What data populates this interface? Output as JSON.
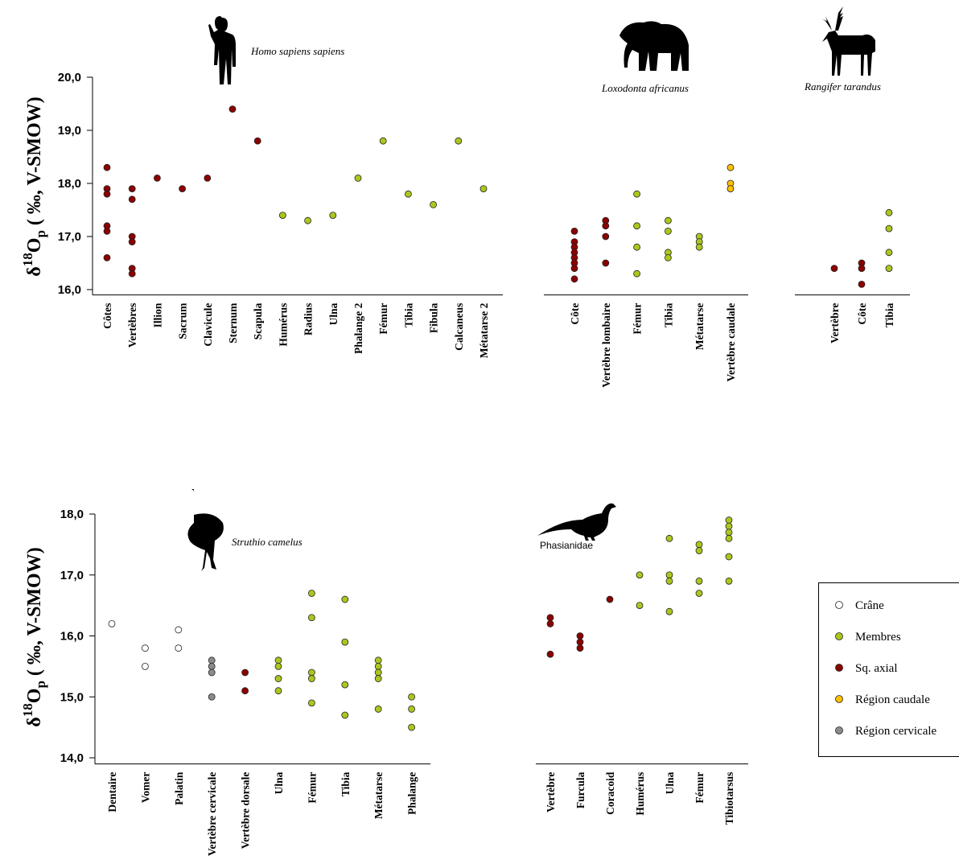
{
  "chart_data": [
    {
      "type": "scatter",
      "title": "Homo sapiens sapiens",
      "ylabel": {
        "symbol": "δ",
        "superscript": "18",
        "main": "O",
        "subscript": "p",
        "rest": " ( ‰, V-SMOW)"
      },
      "categories": [
        "Côtes",
        "Vertèbres",
        "Illion",
        "Sacrum",
        "Clavicule",
        "Sternum",
        "Scapula",
        "Humérus",
        "Radius",
        "Ulna",
        "Phalange 2",
        "Fémur",
        "Tibia",
        "Fibula",
        "Calcaneus",
        "Métatarse 2"
      ],
      "ylim": [
        15.9,
        20.0
      ],
      "yticks": [
        {
          "value": 16,
          "label": "16,0"
        },
        {
          "value": 17,
          "label": "17,0"
        },
        {
          "value": 18,
          "label": "18,0"
        },
        {
          "value": 19,
          "label": "19,0"
        },
        {
          "value": 20,
          "label": "20,0"
        }
      ],
      "series": [
        {
          "name": "Sq. axial",
          "color": "#8b0000",
          "x": [
            "Côtes",
            "Côtes",
            "Côtes",
            "Côtes",
            "Côtes",
            "Côtes",
            "Vertèbres",
            "Vertèbres",
            "Vertèbres",
            "Vertèbres",
            "Vertèbres",
            "Vertèbres",
            "Illion",
            "Sacrum",
            "Clavicule",
            "Sternum",
            "Scapula"
          ],
          "values": [
            18.3,
            17.9,
            17.8,
            17.2,
            17.1,
            16.6,
            17.9,
            17.7,
            17.0,
            16.9,
            16.4,
            16.3,
            18.1,
            17.9,
            18.1,
            19.4,
            18.8
          ]
        },
        {
          "name": "Membres",
          "color": "#a9c81e",
          "x": [
            "Humérus",
            "Radius",
            "Ulna",
            "Phalange 2",
            "Fémur",
            "Tibia",
            "Fibula",
            "Calcaneus",
            "Métatarse 2"
          ],
          "values": [
            17.4,
            17.3,
            17.4,
            18.1,
            18.8,
            17.8,
            17.6,
            18.8,
            17.9
          ]
        }
      ]
    },
    {
      "type": "scatter",
      "title": "Loxodonta africanus",
      "categories": [
        "Côte",
        "Vertèbre lombaire",
        "Fémur",
        "Tibia",
        "Métatarse",
        "Vertèbre caudale"
      ],
      "ylim": [
        15.9,
        20.0
      ],
      "series": [
        {
          "name": "Sq. axial",
          "color": "#8b0000",
          "x": [
            "Côte",
            "Côte",
            "Côte",
            "Côte",
            "Côte",
            "Côte",
            "Côte",
            "Côte",
            "Vertèbre lombaire",
            "Vertèbre lombaire",
            "Vertèbre lombaire",
            "Vertèbre lombaire"
          ],
          "values": [
            17.1,
            16.9,
            16.8,
            16.7,
            16.6,
            16.5,
            16.4,
            16.2,
            17.3,
            17.2,
            17.0,
            16.5
          ]
        },
        {
          "name": "Membres",
          "color": "#a9c81e",
          "x": [
            "Fémur",
            "Fémur",
            "Fémur",
            "Fémur",
            "Tibia",
            "Tibia",
            "Tibia",
            "Tibia",
            "Métatarse",
            "Métatarse",
            "Métatarse"
          ],
          "values": [
            17.8,
            17.2,
            16.8,
            16.3,
            17.3,
            17.1,
            16.7,
            16.6,
            17.0,
            16.9,
            16.8
          ]
        },
        {
          "name": "Région caudale",
          "color": "#ffc000",
          "x": [
            "Vertèbre caudale",
            "Vertèbre caudale",
            "Vertèbre caudale"
          ],
          "values": [
            18.3,
            18.0,
            17.9
          ]
        }
      ]
    },
    {
      "type": "scatter",
      "title": "Rangifer tarandus",
      "categories": [
        "Vertèbre",
        "Côte",
        "Tibia"
      ],
      "ylim": [
        15.9,
        20.0
      ],
      "series": [
        {
          "name": "Sq. axial",
          "color": "#8b0000",
          "x": [
            "Vertèbre",
            "Côte",
            "Côte",
            "Côte"
          ],
          "values": [
            16.4,
            16.5,
            16.4,
            16.1
          ]
        },
        {
          "name": "Membres",
          "color": "#a9c81e",
          "x": [
            "Tibia",
            "Tibia",
            "Tibia",
            "Tibia"
          ],
          "values": [
            17.45,
            17.15,
            16.7,
            16.4
          ]
        }
      ]
    },
    {
      "type": "scatter",
      "title": "Struthio camelus",
      "ylabel": {
        "symbol": "δ",
        "superscript": "18",
        "main": "O",
        "subscript": "p",
        "rest": " ( ‰, V-SMOW)"
      },
      "categories": [
        "Dentaire",
        "Vomer",
        "Palatin",
        "Vertèbre cervicale",
        "Vertèbre dorsale",
        "Ulna",
        "Fémur",
        "Tibia",
        "Métatarse",
        "Phalange"
      ],
      "ylim": [
        13.9,
        18.0
      ],
      "yticks": [
        {
          "value": 14,
          "label": "14,0"
        },
        {
          "value": 15,
          "label": "15,0"
        },
        {
          "value": 16,
          "label": "16,0"
        },
        {
          "value": 17,
          "label": "17,0"
        },
        {
          "value": 18,
          "label": "18,0"
        }
      ],
      "series": [
        {
          "name": "Crâne",
          "color": "#ffffff",
          "x": [
            "Dentaire",
            "Vomer",
            "Vomer",
            "Palatin",
            "Palatin"
          ],
          "values": [
            16.2,
            15.8,
            15.5,
            16.1,
            15.8
          ]
        },
        {
          "name": "Région cervicale",
          "color": "#8c8c8c",
          "x": [
            "Vertèbre cervicale",
            "Vertèbre cervicale",
            "Vertèbre cervicale",
            "Vertèbre cervicale"
          ],
          "values": [
            15.6,
            15.5,
            15.4,
            15.0
          ]
        },
        {
          "name": "Sq. axial",
          "color": "#8b0000",
          "x": [
            "Vertèbre dorsale",
            "Vertèbre dorsale"
          ],
          "values": [
            15.4,
            15.1
          ]
        },
        {
          "name": "Membres",
          "color": "#a9c81e",
          "x": [
            "Ulna",
            "Ulna",
            "Ulna",
            "Ulna",
            "Fémur",
            "Fémur",
            "Fémur",
            "Fémur",
            "Fémur",
            "Tibia",
            "Tibia",
            "Tibia",
            "Tibia",
            "Métatarse",
            "Métatarse",
            "Métatarse",
            "Métatarse",
            "Métatarse",
            "Phalange",
            "Phalange",
            "Phalange"
          ],
          "values": [
            15.6,
            15.5,
            15.3,
            15.1,
            16.7,
            16.3,
            15.4,
            15.3,
            14.9,
            16.6,
            15.9,
            15.2,
            14.7,
            15.6,
            15.5,
            15.4,
            15.3,
            14.8,
            15.0,
            14.8,
            14.5
          ]
        }
      ]
    },
    {
      "type": "scatter",
      "title": "Phasianidae",
      "categories": [
        "Vertèbre",
        "Furcula",
        "Coracoid",
        "Humérus",
        "Ulna",
        "Fémur",
        "Tibiotarsus"
      ],
      "ylim": [
        13.9,
        18.0
      ],
      "series": [
        {
          "name": "Sq. axial",
          "color": "#8b0000",
          "x": [
            "Vertèbre",
            "Vertèbre",
            "Vertèbre",
            "Furcula",
            "Furcula",
            "Furcula",
            "Coracoid"
          ],
          "values": [
            16.3,
            16.2,
            15.7,
            16.0,
            15.9,
            15.8,
            16.6
          ]
        },
        {
          "name": "Membres",
          "color": "#a9c81e",
          "x": [
            "Humérus",
            "Humérus",
            "Ulna",
            "Ulna",
            "Ulna",
            "Ulna",
            "Fémur",
            "Fémur",
            "Fémur",
            "Fémur",
            "Tibiotarsus",
            "Tibiotarsus",
            "Tibiotarsus",
            "Tibiotarsus",
            "Tibiotarsus",
            "Tibiotarsus"
          ],
          "values": [
            17.0,
            16.5,
            17.6,
            17.0,
            16.9,
            16.4,
            17.5,
            17.4,
            16.9,
            16.7,
            17.9,
            17.8,
            17.7,
            17.6,
            17.3,
            16.9
          ]
        }
      ]
    }
  ],
  "legend": [
    {
      "name": "Crâne",
      "color": "#ffffff"
    },
    {
      "name": "Membres",
      "color": "#a9c81e"
    },
    {
      "name": "Sq. axial",
      "color": "#8b0000"
    },
    {
      "name": "Région caudale",
      "color": "#ffc000"
    },
    {
      "name": "Région cervicale",
      "color": "#8c8c8c"
    }
  ]
}
